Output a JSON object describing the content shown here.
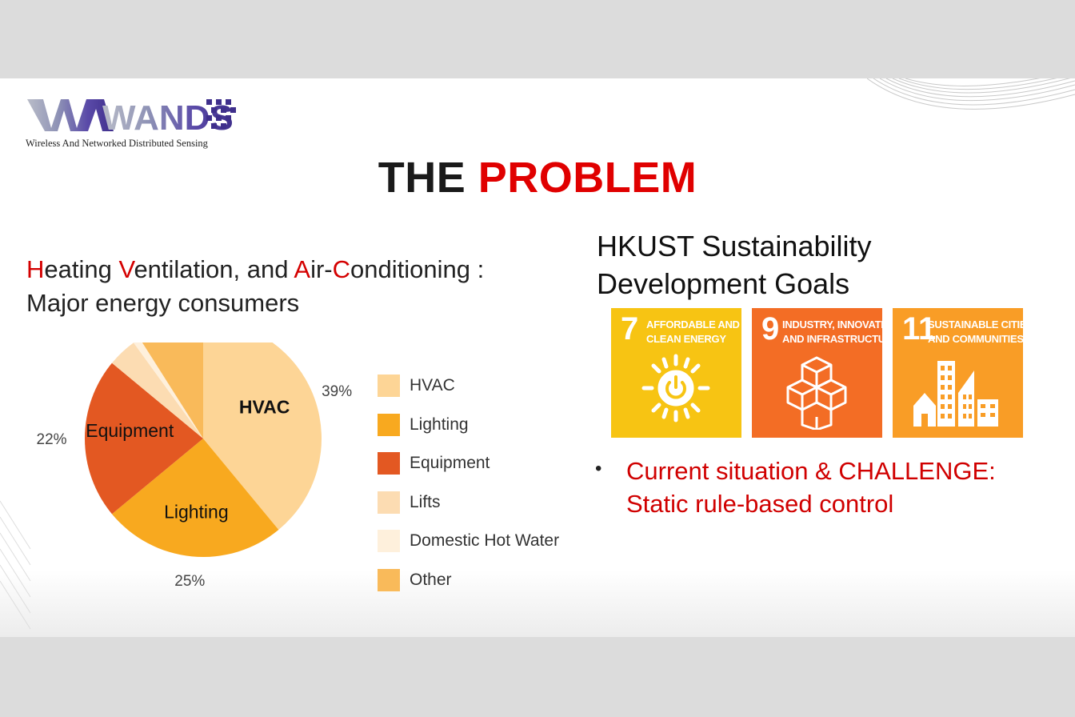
{
  "logo": {
    "wordmark": "WANDS",
    "tagline": "Wireless And Networked Distributed Sensing"
  },
  "title": {
    "part1": "THE",
    "part2": "PROBLEM"
  },
  "hvac_heading": {
    "segments": [
      "H",
      "eating ",
      "V",
      "entilation, and ",
      "A",
      "ir-",
      "C",
      "onditioning :"
    ],
    "line2": "Major energy consumers"
  },
  "chart_data": {
    "type": "pie",
    "slices": [
      {
        "label": "HVAC",
        "value": 39,
        "pct_label": "39%",
        "inner_label": "HVAC",
        "color": "#fdd596"
      },
      {
        "label": "Lighting",
        "value": 25,
        "pct_label": "25%",
        "inner_label": "Lighting",
        "color": "#f8a91f"
      },
      {
        "label": "Equipment",
        "value": 22,
        "pct_label": "22%",
        "inner_label": "Equipment",
        "color": "#e35822"
      },
      {
        "label": "Lifts",
        "value": 4,
        "pct_label": "4%",
        "inner_label": "",
        "color": "#fcdcb2"
      },
      {
        "label": "Domestic Hot Water",
        "value": 1,
        "pct_label": "1%",
        "inner_label": "",
        "color": "#fef0dc"
      },
      {
        "label": "Other",
        "value": 9,
        "pct_label": "9%",
        "inner_label": "",
        "color": "#f9ba5a"
      }
    ],
    "legend": [
      "HVAC",
      "Lighting",
      "Equipment",
      "Lifts",
      "Domestic Hot Water",
      "Other"
    ],
    "legend_position": "right"
  },
  "sdg": {
    "heading_line1": "HKUST Sustainability",
    "heading_line2": "Development Goals",
    "goals": [
      {
        "number": "7",
        "line1": "AFFORDABLE AND",
        "line2": "CLEAN ENERGY",
        "color": "#f7c413",
        "icon": "sun-power-icon"
      },
      {
        "number": "9",
        "line1": "INDUSTRY, INNOVATION",
        "line2": "AND INFRASTRUCTURE",
        "color": "#f36d25",
        "icon": "cubes-icon"
      },
      {
        "number": "11",
        "line1": "SUSTAINABLE CITIES",
        "line2": "AND COMMUNITIES",
        "color": "#f99d26",
        "icon": "city-buildings-icon"
      }
    ]
  },
  "bullet": {
    "marker": "•",
    "line1": "Current situation & CHALLENGE:",
    "line2": "Static rule-based control"
  }
}
